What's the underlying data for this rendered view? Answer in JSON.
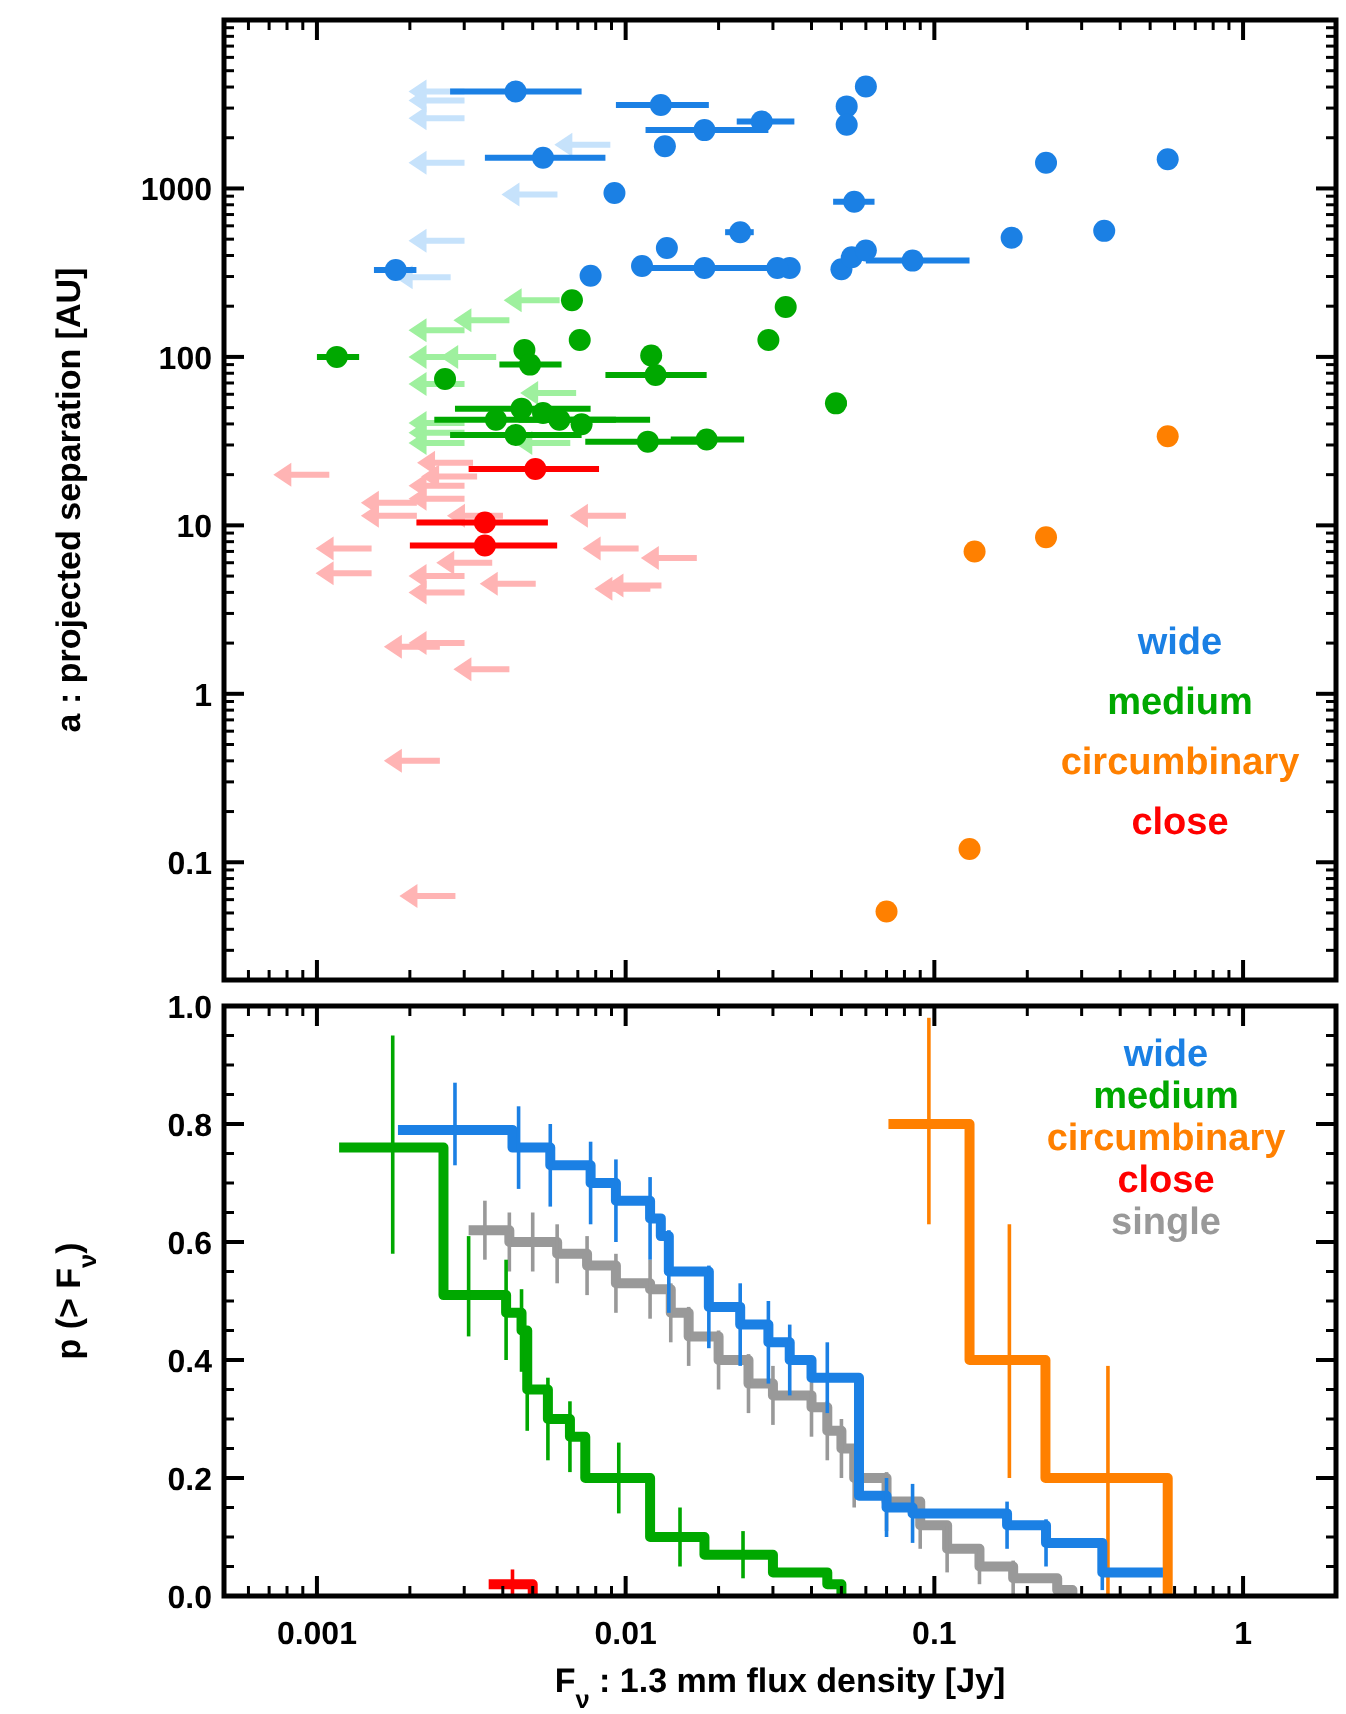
{
  "chart_data": [
    {
      "type": "scatter",
      "log": "xy",
      "xlim": [
        0.0005,
        2
      ],
      "xticks": [
        0.001,
        0.01,
        0.1,
        1
      ],
      "ylim": [
        0.02,
        10000
      ],
      "yticks": [
        0.1,
        1,
        10,
        100,
        1000
      ],
      "ylabel": "a : projected separation [AU]",
      "tick_labels": "y",
      "legend": "right",
      "series": [
        {
          "name": "wide",
          "color": "#1b80e4",
          "marker": "circle",
          "x": [
            0.0044,
            0.013,
            0.018,
            0.0276,
            0.0134,
            0.0054,
            0.0092,
            0.0235,
            0.0136,
            0.0113,
            0.018,
            0.034,
            0.0018,
            0.0077,
            0.06,
            0.052,
            0.052,
            0.23,
            0.57,
            0.055,
            0.178,
            0.355,
            0.031,
            0.05,
            0.054,
            0.06,
            0.085
          ],
          "values": [
            3760,
            3130,
            2220,
            2500,
            1780,
            1520,
            940,
            550,
            443,
            346,
            337,
            337,
            328,
            303,
            4030,
            3070,
            2390,
            1420,
            1490,
            834,
            510,
            560,
            337,
            331,
            390,
            428,
            373
          ],
          "xerrors": [
            [
              0.0027,
              0.0072
            ],
            [
              0.0093,
              0.0186
            ],
            [
              0.0116,
              0.029
            ],
            [
              0.0229,
              0.0352
            ],
            null,
            [
              0.0035,
              0.0086
            ],
            null,
            [
              0.021,
              0.026
            ],
            null,
            null,
            [
              0.0113,
              0.029
            ],
            null,
            [
              0.00153,
              0.0021
            ],
            null,
            null,
            null,
            null,
            null,
            [
              0.53,
              0.61
            ],
            [
              0.047,
              0.064
            ],
            null,
            null,
            null,
            null,
            null,
            null,
            [
              0.06,
              0.13
            ]
          ]
        },
        {
          "name": "medium",
          "color": "#00a800",
          "marker": "circle",
          "x": [
            0.0067,
            0.0071,
            0.00116,
            0.0047,
            0.0049,
            0.0121,
            0.0125,
            0.0026,
            0.0046,
            0.0038,
            0.0054,
            0.0061,
            0.0072,
            0.0044,
            0.0118,
            0.0183,
            0.033,
            0.029,
            0.048
          ],
          "values": [
            217,
            126,
            100,
            110,
            90,
            102,
            78,
            74,
            49.3,
            42.4,
            46.5,
            42.4,
            39.8,
            34.4,
            31.4,
            32.3,
            198,
            126,
            53
          ],
          "xerrors": [
            null,
            null,
            [
              0.001,
              0.00137
            ],
            null,
            [
              0.0039,
              0.0062
            ],
            null,
            [
              0.0086,
              0.0183
            ],
            null,
            [
              0.0028,
              0.0077
            ],
            [
              0.0024,
              0.0093
            ],
            null,
            [
              0.0045,
              0.012
            ],
            null,
            [
              0.0027,
              0.0072
            ],
            [
              0.0074,
              0.0171
            ],
            [
              0.014,
              0.0242
            ],
            null,
            null,
            [
              0.045,
              0.052
            ]
          ]
        },
        {
          "name": "circumbinary",
          "color": "#ff8000",
          "marker": "circle",
          "x": [
            0.57,
            0.23,
            0.135,
            0.13,
            0.07
          ],
          "values": [
            33.8,
            8.5,
            7.0,
            0.12,
            0.051
          ],
          "xerrors": [
            [
              0.54,
              0.6
            ],
            null,
            null,
            null,
            null
          ]
        },
        {
          "name": "close",
          "color": "#ff0000",
          "marker": "circle",
          "x": [
            0.0051,
            0.0035,
            0.0035
          ],
          "values": [
            21.6,
            10.4,
            7.6
          ],
          "xerrors": [
            [
              0.0031,
              0.0082
            ],
            [
              0.0021,
              0.0056
            ],
            [
              0.002,
              0.006
            ]
          ]
        },
        {
          "color": "#c6e2fb",
          "marker": "triangle",
          "x": [
            0.00244,
            0.00244,
            0.00244,
            0.00724,
            0.00244,
            0.00488,
            0.00244,
            0.0022
          ],
          "values": [
            3760,
            3330,
            2610,
            1820,
            1420,
            920,
            490,
            297
          ]
        },
        {
          "color": "#9ef09e",
          "marker": "triangle",
          "x": [
            0.00496,
            0.00341,
            0.00244,
            0.00244,
            0.00309,
            0.00244,
            0.00561,
            0.00244,
            0.00244,
            0.00244,
            0.00537
          ],
          "values": [
            217,
            165,
            144,
            100,
            100,
            69,
            61,
            40.5,
            35.4,
            30.8,
            30.8
          ]
        },
        {
          "color": "#ffb4b4",
          "marker": "triangle",
          "x": [
            0.00089,
            0.0026,
            0.00268,
            0.00244,
            0.00244,
            0.00171,
            0.00325,
            0.00813,
            0.00171,
            0.00122,
            0.00122,
            0.00894,
            0.0138,
            0.003,
            0.00244,
            0.00415,
            0.00244,
            0.0106,
            0.00976,
            0.00244,
            0.00203,
            0.00341,
            0.00203,
            0.00228
          ],
          "values": [
            20,
            23.5,
            19.5,
            17.2,
            14.4,
            13.6,
            11.4,
            11.4,
            11.4,
            7.3,
            5.2,
            7.3,
            6.4,
            6.0,
            5.0,
            4.5,
            4.0,
            4.4,
            4.2,
            2.0,
            1.9,
            1.4,
            0.4,
            0.063
          ]
        }
      ]
    },
    {
      "type": "step",
      "log": "x",
      "xlim": [
        0.0005,
        2
      ],
      "xticks": [
        0.001,
        0.01,
        0.1,
        1
      ],
      "ylim": [
        0,
        1
      ],
      "yticks": [
        {
          "value": 0,
          "label": "0.0"
        },
        0.2,
        0.4,
        0.6,
        0.8,
        {
          "value": 1,
          "label": "1.0"
        }
      ],
      "xlabel": "F$_{ν}$ : 1.3 mm flux density [Jy]",
      "ylabel": "p (> F$_{ν}$)",
      "legend": "top right",
      "series": [
        {
          "name": "wide",
          "color": "#1b80e4",
          "x": [
            0.00183,
            0.0028,
            0.0043,
            0.0045,
            0.0057,
            0.0077,
            0.0093,
            0.012,
            0.013,
            0.0138,
            0.0186,
            0.0235,
            0.029,
            0.034,
            0.04,
            0.045,
            0.057,
            0.07,
            0.085,
            0.172,
            0.23,
            0.35,
            0.55
          ],
          "values": [
            0.79,
            0.79,
            0.76,
            0.76,
            0.73,
            0.7,
            0.67,
            0.64,
            0.61,
            0.55,
            0.49,
            0.46,
            0.43,
            0.4,
            0.37,
            0.37,
            0.17,
            0.15,
            0.14,
            0.12,
            0.09,
            0.04,
            0.04
          ],
          "errors": [
            null,
            [
              0.73,
              0.87
            ],
            null,
            0.07,
            0.07,
            0.07,
            0.07,
            0.07,
            null,
            0.07,
            0.07,
            0.07,
            0.07,
            0.06,
            null,
            0.06,
            null,
            0.05,
            0.05,
            0.04,
            0.04,
            0.03,
            null
          ]
        },
        {
          "name": "medium",
          "color": "#00a800",
          "x": [
            0.00118,
            0.00176,
            0.00257,
            0.0031,
            0.0041,
            0.0046,
            0.0048,
            0.0056,
            0.0066,
            0.0074,
            0.0095,
            0.012,
            0.015,
            0.018,
            0.024,
            0.03,
            0.035,
            0.045,
            0.05
          ],
          "values": [
            0.76,
            0.76,
            0.51,
            0.51,
            0.48,
            0.45,
            0.35,
            0.3,
            0.27,
            0.2,
            0.2,
            0.1,
            0.1,
            0.07,
            0.07,
            0.04,
            0.04,
            0.02,
            0
          ],
          "errors": [
            null,
            [
              0.58,
              0.95
            ],
            null,
            [
              0.44,
              0.61
            ],
            [
              0.4,
              0.57
            ],
            0.07,
            0.07,
            0.07,
            0.06,
            null,
            0.06,
            null,
            0.05,
            null,
            0.04,
            null,
            null,
            null,
            null
          ]
        },
        {
          "name": "circumbinary",
          "color": "#ff8000",
          "x": [
            0.071,
            0.096,
            0.13,
            0.175,
            0.229,
            0.365,
            0.57
          ],
          "values": [
            0.8,
            0.8,
            0.4,
            0.4,
            0.2,
            0.2,
            0
          ],
          "errors": [
            null,
            [
              0.63,
              0.98
            ],
            null,
            [
              0.2,
              0.63
            ],
            null,
            [
              0,
              0.39
            ],
            null
          ]
        },
        {
          "name": "close",
          "color": "#ff0000",
          "x": [
            0.0036,
            0.0043,
            0.0047,
            0.005
          ],
          "values": [
            0.02,
            0.02,
            0.02,
            0
          ],
          "errors": [
            null,
            0.025,
            null,
            null
          ]
        },
        {
          "name": "single",
          "color": "#999999",
          "x": [
            0.0031,
            0.0035,
            0.0042,
            0.005,
            0.006,
            0.0075,
            0.0093,
            0.012,
            0.014,
            0.016,
            0.02,
            0.025,
            0.03,
            0.04,
            0.045,
            0.05,
            0.055,
            0.07,
            0.09,
            0.11,
            0.14,
            0.18,
            0.25,
            0.28
          ],
          "values": [
            0.62,
            0.62,
            0.6,
            0.6,
            0.58,
            0.56,
            0.53,
            0.52,
            0.48,
            0.44,
            0.4,
            0.36,
            0.34,
            0.32,
            0.28,
            0.25,
            0.2,
            0.16,
            0.12,
            0.08,
            0.05,
            0.03,
            0.01,
            0
          ],
          "errors": [
            null,
            0.05,
            0.05,
            0.05,
            0.05,
            0.05,
            0.05,
            0.05,
            0.05,
            0.05,
            0.05,
            0.05,
            0.05,
            0.05,
            0.05,
            0.05,
            0.05,
            0.05,
            0.04,
            0.04,
            0.03,
            0.03,
            null,
            null
          ]
        }
      ]
    }
  ]
}
